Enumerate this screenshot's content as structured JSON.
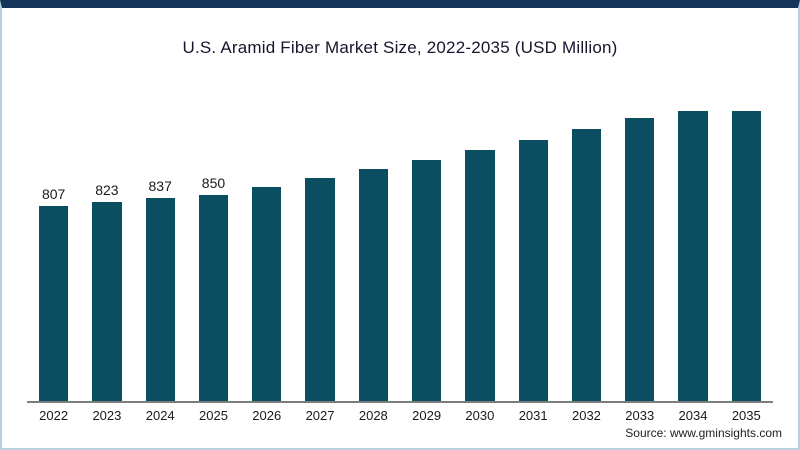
{
  "chart": {
    "title": "U.S. Aramid Fiber Market Size, 2022-2035 (USD Million)",
    "source": "Source: www.gminsights.com"
  },
  "chart_data": {
    "type": "bar",
    "title": "U.S. Aramid Fiber Market Size, 2022-2035 (USD Million)",
    "categories": [
      "2022",
      "2023",
      "2024",
      "2025",
      "2026",
      "2027",
      "2028",
      "2029",
      "2030",
      "2031",
      "2032",
      "2033",
      "2034",
      "2035"
    ],
    "values": [
      807,
      823,
      837,
      850,
      885,
      921,
      958,
      997,
      1037,
      1079,
      1123,
      1168,
      1215,
      1264
    ],
    "data_labels": [
      "807",
      "823",
      "837",
      "850",
      "",
      "",
      "",
      "",
      "",
      "",
      "",
      "",
      "",
      ""
    ],
    "xlabel": "",
    "ylabel": "",
    "ylim": [
      0,
      1320
    ],
    "grid": false,
    "legend": false,
    "bar_color": "#0b4d61",
    "note": "Values for 2026-2035 estimated from bar heights; only 2022-2025 carry printed data labels"
  }
}
